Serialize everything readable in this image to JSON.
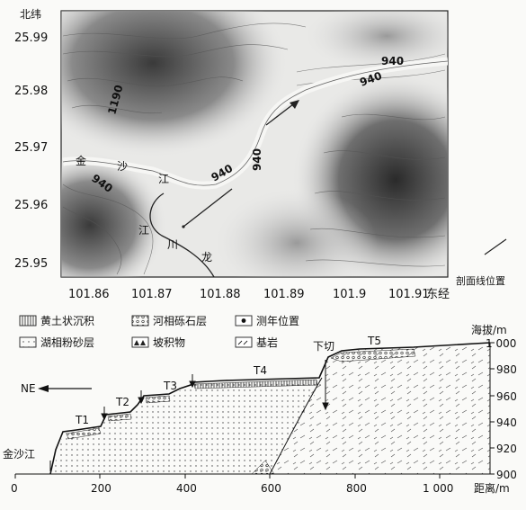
{
  "map": {
    "lat_title": "北纬",
    "lon_title": "东经",
    "lat_ticks": [
      "25.99",
      "25.98",
      "25.97",
      "25.96",
      "25.95"
    ],
    "lon_ticks": [
      "101.86",
      "101.87",
      "101.88",
      "101.89",
      "101.9",
      "101.91"
    ],
    "contours": [
      "1190",
      "940",
      "940",
      "940",
      "940",
      "940"
    ],
    "river_chars": [
      "金",
      "沙",
      "江",
      "江",
      "川",
      "龙"
    ],
    "profile_line_legend": "剖面线位置"
  },
  "legend": [
    {
      "label": "黄土状沉积",
      "swatch": "vertical-hatch"
    },
    {
      "label": "河相砾石层",
      "swatch": "gravel"
    },
    {
      "label": "测年位置",
      "swatch": "dot"
    },
    {
      "label": "湖相粉砂层",
      "swatch": "dots"
    },
    {
      "label": "坡积物",
      "swatch": "colluvium"
    },
    {
      "label": "基岩",
      "swatch": "bedrock"
    }
  ],
  "profile": {
    "direction": "NE",
    "river": "金沙江",
    "downcut": "下切",
    "terraces": [
      "T1",
      "T2",
      "T3",
      "T4",
      "T5"
    ],
    "y_title": "海拔/m",
    "x_title": "距离/m",
    "y_ticks": [
      "1 000",
      "980",
      "960",
      "940",
      "920",
      "900"
    ],
    "x_ticks": [
      "0",
      "200",
      "400",
      "600",
      "800",
      "1 000"
    ]
  }
}
